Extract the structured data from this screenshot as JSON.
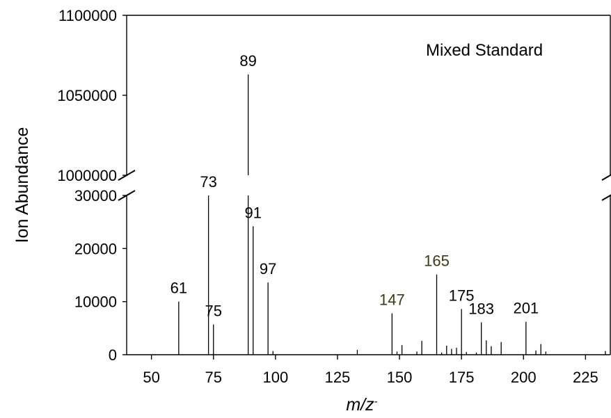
{
  "chart_data": {
    "type": "bar",
    "subtype": "mass-spectrum stick plot with broken y-axis",
    "annotation": "Mixed Standard",
    "xlabel": "m/z",
    "xlabel_superscript": "-",
    "ylabel": "Ion Abundance",
    "xlim": [
      40,
      235
    ],
    "xticks": [
      50,
      75,
      100,
      125,
      150,
      175,
      200,
      225
    ],
    "y_lower_range": [
      0,
      30000
    ],
    "y_upper_range": [
      1000000,
      1100000
    ],
    "yticks_lower": [
      0,
      10000,
      20000,
      30000
    ],
    "yticks_upper": [
      1000000,
      1050000,
      1100000
    ],
    "y_axis_break": true,
    "grid": false,
    "label_colors": {
      "default": "#000000",
      "highlight": "#3a3a12"
    },
    "peaks": [
      {
        "x": 61,
        "y": 10000,
        "label": "61"
      },
      {
        "x": 73,
        "y": 30000,
        "label": "73"
      },
      {
        "x": 75,
        "y": 5700,
        "label": "75"
      },
      {
        "x": 89,
        "y": 1063000,
        "label": "89"
      },
      {
        "x": 91,
        "y": 24200,
        "label": "91"
      },
      {
        "x": 97,
        "y": 13600,
        "label": "97"
      },
      {
        "x": 99,
        "y": 700
      },
      {
        "x": 133,
        "y": 900
      },
      {
        "x": 147,
        "y": 7800,
        "label": "147",
        "highlight": true
      },
      {
        "x": 149,
        "y": 600
      },
      {
        "x": 151,
        "y": 1800
      },
      {
        "x": 157,
        "y": 600
      },
      {
        "x": 159,
        "y": 2600
      },
      {
        "x": 165,
        "y": 15100,
        "label": "165",
        "highlight": true
      },
      {
        "x": 167,
        "y": 400
      },
      {
        "x": 169,
        "y": 1700
      },
      {
        "x": 171,
        "y": 1100
      },
      {
        "x": 173,
        "y": 1300
      },
      {
        "x": 175,
        "y": 8600,
        "label": "175"
      },
      {
        "x": 177,
        "y": 500
      },
      {
        "x": 181,
        "y": 400
      },
      {
        "x": 183,
        "y": 6100,
        "label": "183"
      },
      {
        "x": 185,
        "y": 2700
      },
      {
        "x": 187,
        "y": 1600
      },
      {
        "x": 191,
        "y": 2400
      },
      {
        "x": 201,
        "y": 6200,
        "label": "201"
      },
      {
        "x": 205,
        "y": 800
      },
      {
        "x": 207,
        "y": 2000
      },
      {
        "x": 209,
        "y": 600
      },
      {
        "x": 233,
        "y": 700
      }
    ]
  }
}
